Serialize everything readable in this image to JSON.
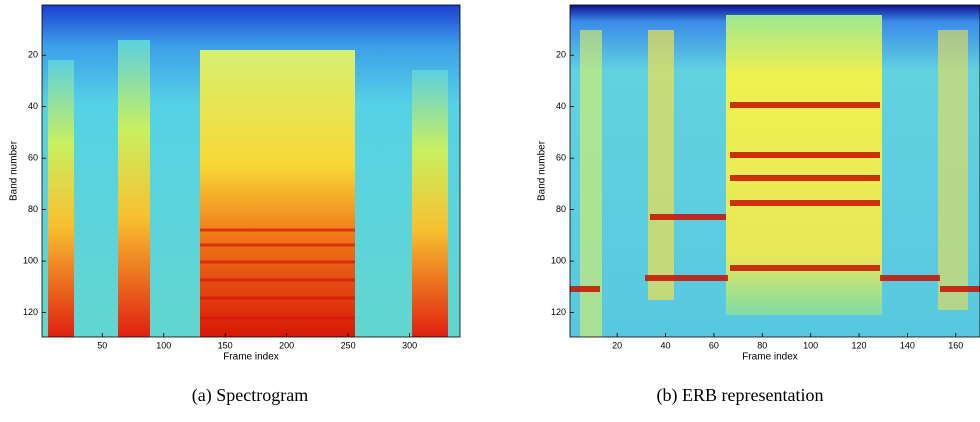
{
  "chart_data": [
    {
      "type": "heatmap",
      "xlabel": "Frame index",
      "ylabel": "Band number",
      "caption": "(a) Spectrogram",
      "xlim": [
        1,
        341
      ],
      "ylim": [
        0.5,
        129.5
      ],
      "y_reversed": true,
      "xticks": [
        50,
        100,
        150,
        200,
        250,
        300
      ],
      "yticks": [
        20,
        40,
        60,
        80,
        100,
        120
      ]
    },
    {
      "type": "heatmap",
      "xlabel": "Frame index",
      "ylabel": "Band number",
      "caption": "(b) ERB representation",
      "xlim": [
        0.5,
        170
      ],
      "ylim": [
        0.5,
        129.5
      ],
      "y_reversed": true,
      "xticks": [
        20,
        40,
        60,
        80,
        100,
        120,
        140,
        160
      ],
      "yticks": [
        20,
        40,
        60,
        80,
        100,
        120
      ]
    }
  ]
}
